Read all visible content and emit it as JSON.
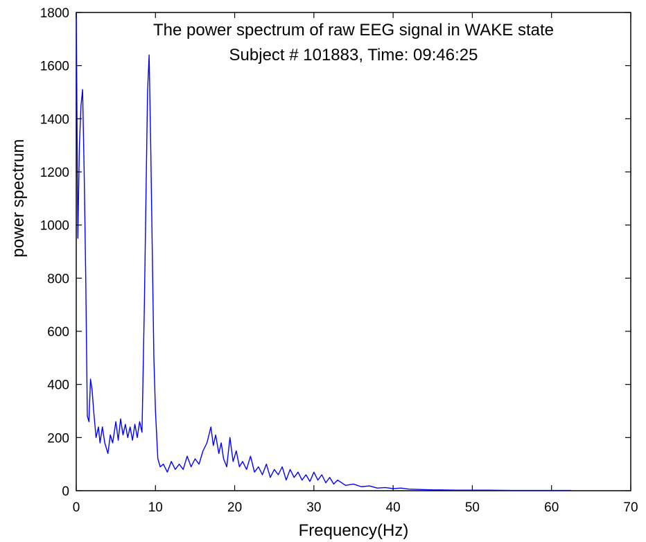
{
  "chart_data": {
    "type": "line",
    "title": "The power spectrum of raw EEG signal in WAKE state",
    "subtitle": "Subject # 101883, Time: 09:46:25",
    "xlabel": "Frequency(Hz)",
    "ylabel": "power spectrum",
    "xlim": [
      0,
      70
    ],
    "ylim": [
      0,
      1800
    ],
    "x_ticks": [
      0,
      10,
      20,
      30,
      40,
      50,
      60,
      70
    ],
    "y_ticks": [
      0,
      200,
      400,
      600,
      800,
      1000,
      1200,
      1400,
      1600,
      1800
    ],
    "grid": false,
    "legend": "none",
    "series": [
      {
        "color": "#0000ff",
        "x": [
          0.0,
          0.2,
          0.4,
          0.6,
          0.8,
          1.0,
          1.2,
          1.4,
          1.6,
          1.8,
          2.0,
          2.2,
          2.5,
          2.8,
          3.0,
          3.3,
          3.6,
          4.0,
          4.3,
          4.6,
          5.0,
          5.3,
          5.6,
          5.9,
          6.2,
          6.5,
          6.8,
          7.1,
          7.4,
          7.7,
          8.0,
          8.3,
          8.6,
          8.8,
          9.0,
          9.2,
          9.4,
          9.6,
          9.8,
          10.0,
          10.3,
          10.6,
          11.0,
          11.5,
          12.0,
          12.5,
          13.0,
          13.5,
          14.0,
          14.5,
          15.0,
          15.5,
          16.0,
          16.5,
          17.0,
          17.3,
          17.6,
          18.0,
          18.3,
          18.6,
          19.0,
          19.4,
          19.8,
          20.2,
          20.6,
          21.0,
          21.5,
          22.0,
          22.5,
          23.0,
          23.5,
          24.0,
          24.5,
          25.0,
          25.5,
          26.0,
          26.5,
          27.0,
          27.5,
          28.0,
          28.5,
          29.0,
          29.5,
          30.0,
          30.5,
          31.0,
          31.5,
          32.0,
          32.5,
          33.0,
          34.0,
          35.0,
          36.0,
          37.0,
          38.0,
          39.0,
          40.0,
          41.0,
          42.0,
          43.0,
          44.0,
          45.0,
          46.0,
          48.0,
          50.0,
          52.0,
          55.0,
          58.0,
          60.0,
          62.5
        ],
        "values": [
          1800,
          950,
          1300,
          1450,
          1510,
          1200,
          800,
          280,
          260,
          420,
          380,
          300,
          200,
          240,
          180,
          240,
          180,
          140,
          210,
          180,
          260,
          190,
          270,
          210,
          250,
          200,
          240,
          190,
          250,
          200,
          260,
          220,
          700,
          1100,
          1500,
          1640,
          1300,
          900,
          500,
          300,
          120,
          90,
          100,
          70,
          110,
          80,
          100,
          80,
          130,
          90,
          120,
          100,
          150,
          180,
          240,
          170,
          210,
          140,
          180,
          120,
          90,
          200,
          110,
          150,
          90,
          110,
          80,
          130,
          70,
          90,
          60,
          100,
          50,
          80,
          60,
          90,
          40,
          80,
          50,
          70,
          40,
          60,
          35,
          70,
          40,
          60,
          30,
          50,
          25,
          40,
          20,
          25,
          15,
          18,
          10,
          12,
          8,
          10,
          6,
          5,
          4,
          3,
          3,
          2,
          2,
          2,
          1,
          1,
          1,
          1
        ]
      }
    ]
  }
}
